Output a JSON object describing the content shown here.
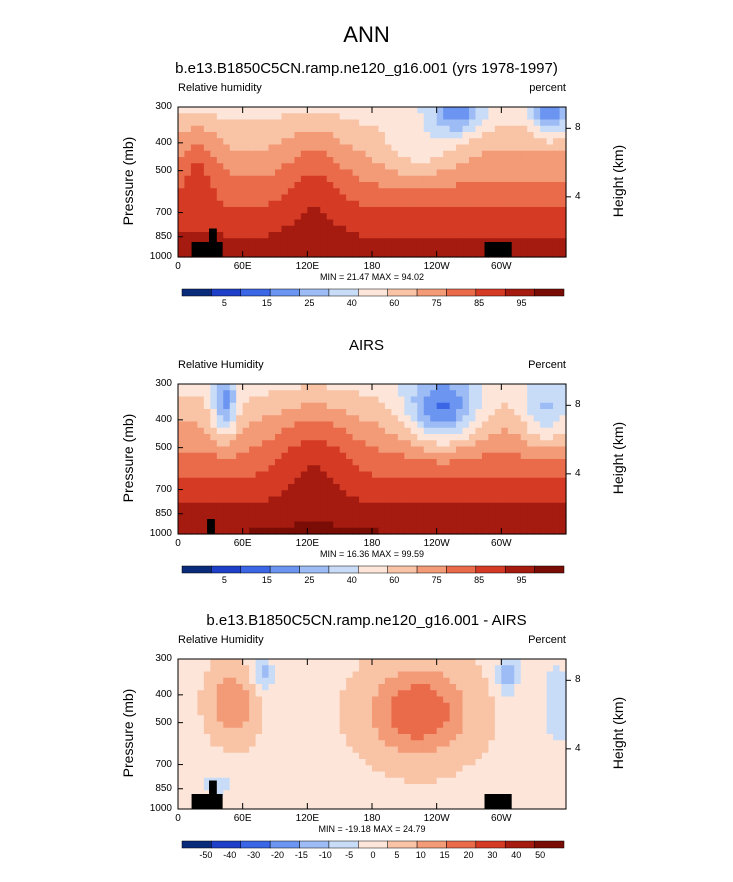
{
  "main_title": "ANN",
  "common": {
    "ylabel": "Pressure (mb)",
    "ylabel_right": "Height (km)",
    "yticks": [
      "300",
      "400",
      "500",
      "700",
      "850",
      "1000"
    ],
    "xticks": [
      "0",
      "60E",
      "120E",
      "180",
      "120W",
      "60W"
    ],
    "right_ticks": [
      "8",
      "4"
    ]
  },
  "chart_data": [
    {
      "type": "heatmap",
      "title": "b.e13.B1850C5CN.ramp.ne120_g16.001 (yrs 1978-1997)",
      "left_label": "Relative humidity",
      "right_label": "percent",
      "min": "21.47",
      "max": "94.02",
      "minmax_text": "MIN = 21.47  MAX = 94.02",
      "colorbar_labels": [
        "5",
        "15",
        "25",
        "40",
        "60",
        "75",
        "85",
        "95"
      ],
      "colors": [
        "#0a2a7a",
        "#1e40c8",
        "#3b66e6",
        "#6b95f0",
        "#9dbcf5",
        "#c8dcf8",
        "#fde6d9",
        "#f9c3a6",
        "#f39a77",
        "#ea6b4a",
        "#d53a25",
        "#a51b10",
        "#7a0c06"
      ]
    },
    {
      "type": "heatmap",
      "title": "AIRS",
      "left_label": "Relative Humidity",
      "right_label": "Percent",
      "min": "16.36",
      "max": "99.59",
      "minmax_text": "MIN = 16.36  MAX = 99.59",
      "colorbar_labels": [
        "5",
        "15",
        "25",
        "40",
        "60",
        "75",
        "85",
        "95"
      ],
      "colors": [
        "#0a2a7a",
        "#1e40c8",
        "#3b66e6",
        "#6b95f0",
        "#9dbcf5",
        "#c8dcf8",
        "#fde6d9",
        "#f9c3a6",
        "#f39a77",
        "#ea6b4a",
        "#d53a25",
        "#a51b10",
        "#7a0c06"
      ]
    },
    {
      "type": "heatmap",
      "title": "b.e13.B1850C5CN.ramp.ne120_g16.001 - AIRS",
      "left_label": "Relative Humidity",
      "right_label": "Percent",
      "min": "-19.18",
      "max": "24.79",
      "minmax_text": "MIN = -19.18  MAX = 24.79",
      "colorbar_labels": [
        "-50",
        "-40",
        "-30",
        "-20",
        "-15",
        "-10",
        "-5",
        "0",
        "5",
        "10",
        "15",
        "20",
        "30",
        "40",
        "50"
      ],
      "colors": [
        "#0a2a7a",
        "#1e40c8",
        "#3b66e6",
        "#6b95f0",
        "#9dbcf5",
        "#c8dcf8",
        "#fde6d9",
        "#f9c3a6",
        "#f39a77",
        "#ea6b4a",
        "#d53a25",
        "#a51b10",
        "#7a0c06"
      ]
    }
  ]
}
